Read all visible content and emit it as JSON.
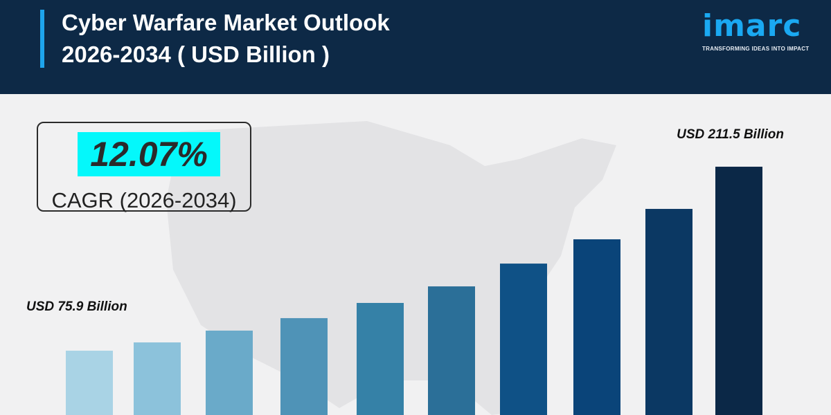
{
  "header": {
    "title_line1": "Cyber Warfare Market Outlook",
    "title_line2": "2026-2034 ( USD Billion )"
  },
  "logo": {
    "word": "imarc",
    "tagline": "TRANSFORMING IDEAS INTO IMPACT"
  },
  "cagr": {
    "value": "12.07%",
    "label": "CAGR (2026-2034)"
  },
  "colors": {
    "header": "#0d2946",
    "accent": "#1ea4ec",
    "highlight": "#04f8fb"
  },
  "chart_data": {
    "type": "bar",
    "title": "Cyber Warfare Market Outlook 2026-2034 ( USD Billion )",
    "values": [
      75.9,
      82.0,
      90.7,
      99.9,
      111.1,
      123.3,
      140.1,
      158.0,
      180.4,
      211.5
    ],
    "data_labels": [
      {
        "index": 0,
        "text": "USD 75.9 Billion"
      },
      {
        "index": 9,
        "text": "USD 211.5 Billion"
      }
    ],
    "colors": [
      "#a9d3e5",
      "#8cc2db",
      "#6aaac9",
      "#4f93b7",
      "#3581a7",
      "#2b6f98",
      "#0f5186",
      "#0a4479",
      "#0b3863",
      "#0b2847"
    ],
    "ylim": [
      28.5,
      215
    ],
    "grid": false,
    "legend": "none"
  }
}
